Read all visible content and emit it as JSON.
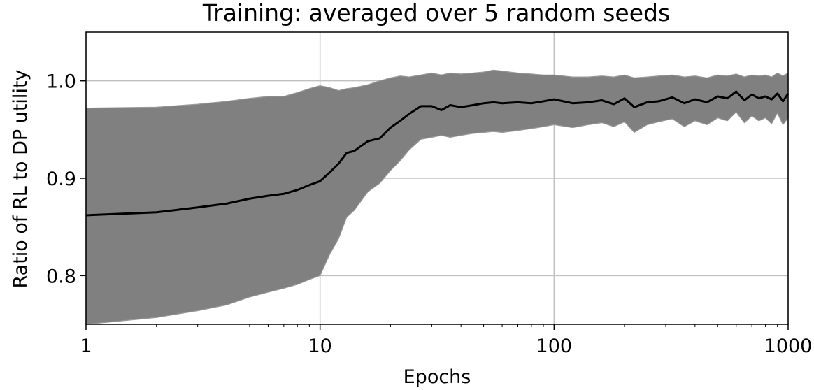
{
  "chart_data": {
    "type": "line",
    "title": "Training: averaged over 5 random seeds",
    "xlabel": "Epochs",
    "ylabel": "Ratio of RL to DP utility",
    "x_scale": "log",
    "xlim": [
      1,
      1000
    ],
    "ylim": [
      0.75,
      1.05
    ],
    "grid": true,
    "x_ticks": [
      1,
      10,
      100,
      1000
    ],
    "x_tick_labels": [
      "1",
      "10",
      "100",
      "1000"
    ],
    "y_ticks": [
      0.8,
      0.9,
      1.0
    ],
    "y_tick_labels": [
      "0.8",
      "0.9",
      "1.0"
    ],
    "colors": {
      "mean_line": "#000000",
      "band_fill": "#808080",
      "band_edge": "#999999",
      "grid": "#c0c0c0"
    },
    "series": [
      {
        "role": "mean",
        "x": [
          1,
          2,
          3,
          4,
          5,
          6,
          7,
          8,
          9,
          10,
          11,
          12,
          13,
          14,
          16,
          18,
          20,
          22,
          24,
          27,
          30,
          33,
          36,
          40,
          45,
          50,
          55,
          60,
          70,
          80,
          90,
          100,
          120,
          140,
          160,
          180,
          200,
          220,
          250,
          280,
          320,
          360,
          400,
          450,
          500,
          550,
          600,
          650,
          700,
          750,
          800,
          850,
          900,
          950,
          1000
        ],
        "y": [
          0.862,
          0.865,
          0.87,
          0.874,
          0.879,
          0.882,
          0.884,
          0.888,
          0.893,
          0.897,
          0.906,
          0.915,
          0.926,
          0.928,
          0.938,
          0.941,
          0.952,
          0.959,
          0.966,
          0.974,
          0.974,
          0.97,
          0.975,
          0.973,
          0.975,
          0.977,
          0.978,
          0.977,
          0.978,
          0.977,
          0.979,
          0.981,
          0.977,
          0.978,
          0.98,
          0.976,
          0.982,
          0.973,
          0.978,
          0.979,
          0.983,
          0.977,
          0.981,
          0.978,
          0.984,
          0.982,
          0.989,
          0.98,
          0.986,
          0.982,
          0.984,
          0.981,
          0.987,
          0.979,
          0.987
        ]
      },
      {
        "role": "band",
        "x": [
          1,
          2,
          3,
          4,
          5,
          6,
          7,
          8,
          9,
          10,
          11,
          12,
          13,
          14,
          16,
          18,
          20,
          22,
          24,
          27,
          30,
          33,
          36,
          40,
          45,
          50,
          55,
          60,
          70,
          80,
          90,
          100,
          120,
          140,
          160,
          180,
          200,
          220,
          250,
          280,
          320,
          360,
          400,
          450,
          500,
          550,
          600,
          650,
          700,
          750,
          800,
          850,
          900,
          950,
          1000
        ],
        "upper": [
          0.972,
          0.973,
          0.976,
          0.979,
          0.982,
          0.984,
          0.984,
          0.988,
          0.992,
          0.995,
          0.993,
          0.99,
          0.992,
          0.993,
          0.996,
          1.0,
          1.003,
          1.005,
          1.004,
          1.006,
          1.008,
          1.006,
          1.008,
          1.007,
          1.008,
          1.009,
          1.011,
          1.01,
          1.008,
          1.007,
          1.006,
          1.006,
          1.004,
          1.004,
          1.005,
          1.004,
          1.006,
          1.003,
          1.004,
          1.005,
          1.006,
          1.004,
          1.005,
          1.003,
          1.006,
          1.005,
          1.007,
          1.004,
          1.006,
          1.005,
          1.006,
          1.004,
          1.008,
          1.005,
          1.008
        ],
        "lower": [
          0.75,
          0.757,
          0.764,
          0.77,
          0.778,
          0.783,
          0.787,
          0.791,
          0.796,
          0.8,
          0.822,
          0.838,
          0.86,
          0.867,
          0.886,
          0.895,
          0.908,
          0.918,
          0.929,
          0.94,
          0.942,
          0.944,
          0.942,
          0.944,
          0.946,
          0.947,
          0.948,
          0.947,
          0.949,
          0.951,
          0.953,
          0.955,
          0.952,
          0.955,
          0.957,
          0.953,
          0.958,
          0.947,
          0.955,
          0.958,
          0.961,
          0.953,
          0.959,
          0.955,
          0.962,
          0.959,
          0.968,
          0.957,
          0.964,
          0.959,
          0.962,
          0.956,
          0.967,
          0.955,
          0.962
        ]
      }
    ]
  }
}
